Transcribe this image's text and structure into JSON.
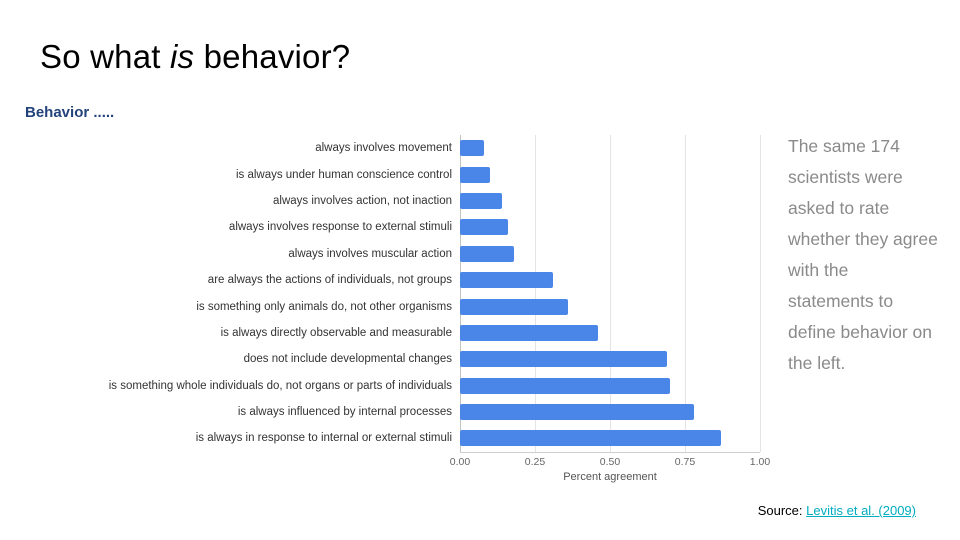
{
  "slide": {
    "title": {
      "pre": "So what ",
      "italic": "is",
      "post": " behavior?"
    },
    "source_label": "Source:",
    "source_link": "Levitis et al. (2009)"
  },
  "side_note": "The same 174 scientists were asked to rate whether they agree with the statements to define behavior on the left.",
  "colors": {
    "bar": "#4a86e8",
    "chart_title": "#24437c",
    "side_note": "#8a8a8a",
    "link": "#00acc1"
  },
  "chart_data": {
    "type": "bar",
    "orientation": "horizontal",
    "title": "Behavior .....",
    "categories": [
      "always involves movement",
      "is always under human conscience control",
      "always involves action, not inaction",
      "always involves response to external stimuli",
      "always involves muscular action",
      "are always the actions of individuals, not groups",
      "is something only animals do, not other organisms",
      "is always directly observable and measurable",
      "does not include developmental changes",
      "is something whole individuals do, not organs or parts of individuals",
      "is always influenced by internal processes",
      "is always in response to internal or external stimuli"
    ],
    "values": [
      0.08,
      0.1,
      0.14,
      0.16,
      0.18,
      0.31,
      0.36,
      0.46,
      0.69,
      0.7,
      0.78,
      0.87
    ],
    "xlabel": "Percent agreement",
    "xlim": [
      0,
      1
    ],
    "xticks": [
      0,
      0.25,
      0.5,
      0.75,
      1
    ],
    "xtick_labels": [
      "0.00",
      "0.25",
      "0.50",
      "0.75",
      "1.00"
    ],
    "grid": true,
    "bar_color": "#4a86e8"
  }
}
